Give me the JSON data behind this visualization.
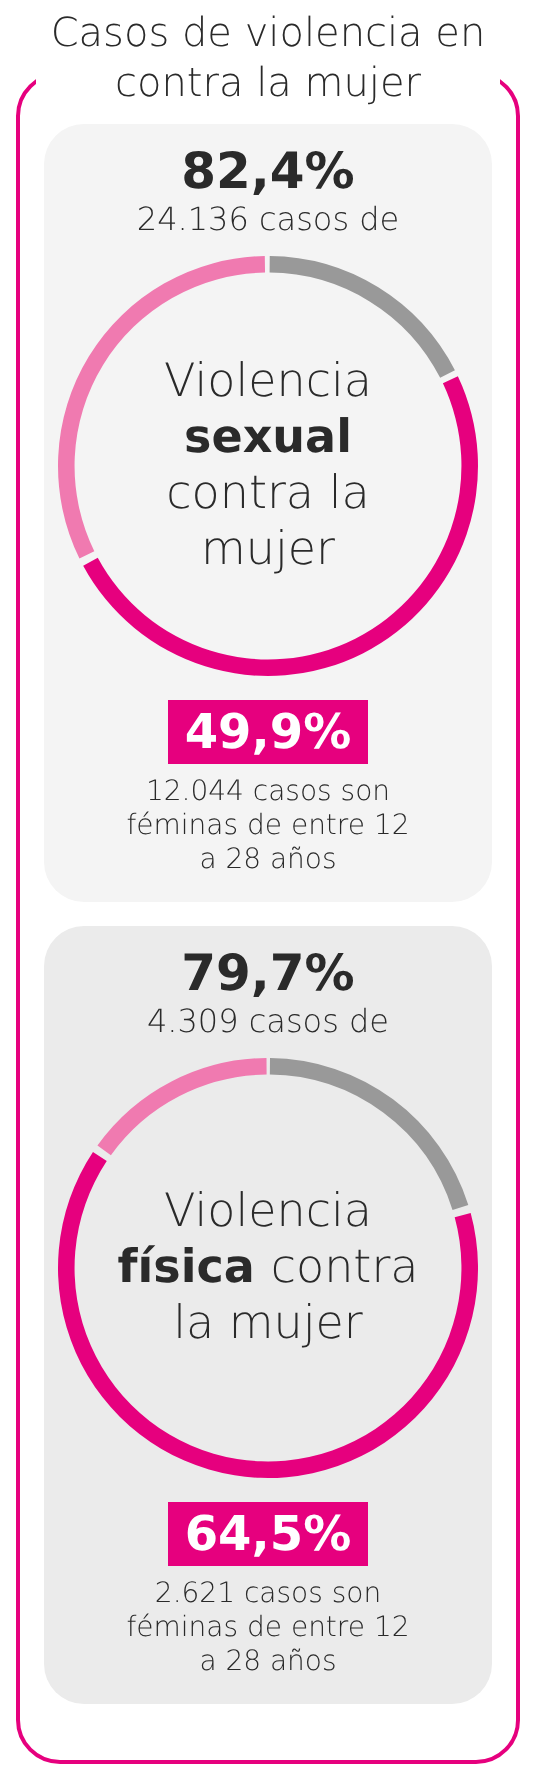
{
  "chart_data": [
    {
      "type": "other",
      "title": "Casos de violencia en contra la mujer"
    },
    {
      "type": "donut",
      "title": "Violencia sexual contra la mujer",
      "categories": [
        null,
        null,
        null
      ],
      "values": [
        17.6,
        49.9,
        32.5
      ],
      "colors": [
        "#999999",
        "#e6007e",
        "#f07ab0"
      ],
      "annotations": [
        "82,4%",
        "24.136 casos de",
        "49,9%",
        "12.044 casos son féminas de entre 12 a 28 años"
      ]
    },
    {
      "type": "donut",
      "title": "Violencia física contra la mujer",
      "categories": [
        null,
        null,
        null
      ],
      "values": [
        20.3,
        64.5,
        15.2
      ],
      "colors": [
        "#999999",
        "#e6007e",
        "#f07ab0"
      ],
      "annotations": [
        "79,7%",
        "4.309 casos de",
        "64,5%",
        "2.621 casos son féminas de entre 12 a 28 años"
      ]
    }
  ]
}
